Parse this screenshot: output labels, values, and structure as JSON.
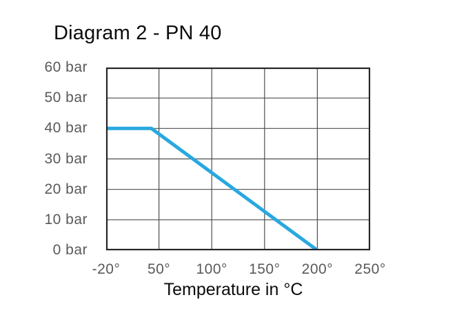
{
  "figure": {
    "background": "#ffffff"
  },
  "chart_data": {
    "type": "line",
    "title": "Diagram 2 - PN 40",
    "xlabel": "Temperature in °C",
    "ylabel": "bar",
    "x_ticks": [
      -20,
      50,
      100,
      150,
      200,
      250
    ],
    "x_tick_labels": [
      "-20°",
      "50°",
      "100°",
      "150°",
      "200°",
      "250°"
    ],
    "y_ticks": [
      0,
      10,
      20,
      30,
      40,
      50,
      60
    ],
    "y_tick_labels": [
      "0 bar",
      "10 bar",
      "20 bar",
      "30 bar",
      "40 bar",
      "50 bar",
      "60 bar"
    ],
    "ylim": [
      0,
      60
    ],
    "grid": true,
    "legend": "none",
    "series": [
      {
        "name": "PN 40",
        "points": [
          {
            "x": -20,
            "y": 40
          },
          {
            "x": 40,
            "y": 40
          },
          {
            "x": 200,
            "y": 0
          }
        ],
        "color": "#29a8e0",
        "stroke_width": 5
      }
    ],
    "colors": {
      "line": "#29a8e0",
      "grid": "#4d4d4f",
      "border": "#262425",
      "tick_text": "#58595b",
      "title_text": "#0b0b0c"
    }
  }
}
